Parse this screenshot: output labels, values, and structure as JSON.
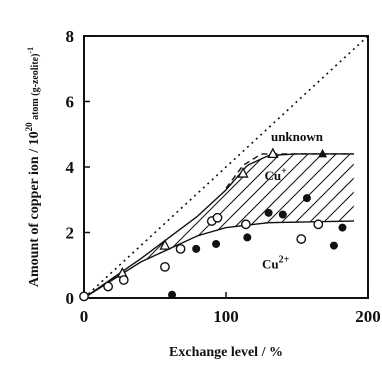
{
  "chart_data": {
    "type": "scatter",
    "title": "",
    "xlabel": "Exchange level / %",
    "ylabel": "Amount of copper ion / 10^20 atom (g-zeolite)^-1",
    "ylabel_main": "Amount of copper ion / 10",
    "ylabel_exp": "20",
    "ylabel_unit": " atom (g-zeolite)",
    "ylabel_unit_exp": "-1",
    "xlim": [
      0,
      200
    ],
    "ylim": [
      0,
      8
    ],
    "xticks": [
      0,
      100,
      200
    ],
    "yticks": [
      0,
      2,
      4,
      6,
      8
    ],
    "grid": false,
    "legend": "none",
    "annotations": [
      {
        "text": "unknown",
        "x": 150,
        "y": 4.8
      },
      {
        "text": "Cu+",
        "x": 135,
        "y": 3.6,
        "sup": "+"
      },
      {
        "text": "Cu2+",
        "x": 135,
        "y": 0.9,
        "sup": "2+"
      }
    ],
    "series": [
      {
        "marker": "open-triangle",
        "values": [
          [
            27,
            0.75
          ],
          [
            57,
            1.6
          ],
          [
            112,
            3.8
          ],
          [
            133,
            4.4
          ]
        ]
      },
      {
        "marker": "filled-triangle",
        "values": [
          [
            168,
            4.4
          ]
        ]
      },
      {
        "marker": "open-circle",
        "values": [
          [
            0,
            0.05
          ],
          [
            17,
            0.35
          ],
          [
            28,
            0.55
          ],
          [
            57,
            0.95
          ],
          [
            68,
            1.5
          ],
          [
            90,
            2.35
          ],
          [
            94,
            2.45
          ],
          [
            114,
            2.25
          ],
          [
            153,
            1.8
          ],
          [
            165,
            2.25
          ]
        ]
      },
      {
        "marker": "filled-circle",
        "values": [
          [
            62,
            0.1
          ],
          [
            79,
            1.5
          ],
          [
            93,
            1.65
          ],
          [
            115,
            1.85
          ],
          [
            130,
            2.6
          ],
          [
            140,
            2.55
          ],
          [
            157,
            3.05
          ],
          [
            176,
            1.6
          ],
          [
            182,
            2.15
          ]
        ]
      }
    ],
    "curves": [
      {
        "role": "total",
        "style": "solid",
        "values": [
          [
            0,
            0
          ],
          [
            40,
            1.2
          ],
          [
            80,
            2.5
          ],
          [
            100,
            3.3
          ],
          [
            115,
            4.05
          ],
          [
            130,
            4.35
          ],
          [
            150,
            4.4
          ],
          [
            190,
            4.4
          ]
        ]
      },
      {
        "role": "total-dashed",
        "style": "dashed",
        "values": [
          [
            100,
            3.35
          ],
          [
            112,
            4.05
          ],
          [
            125,
            4.4
          ],
          [
            190,
            4.4
          ]
        ]
      },
      {
        "role": "cu2plus",
        "style": "solid",
        "values": [
          [
            0,
            0
          ],
          [
            40,
            1.1
          ],
          [
            80,
            1.9
          ],
          [
            100,
            2.15
          ],
          [
            130,
            2.3
          ],
          [
            190,
            2.35
          ]
        ]
      },
      {
        "role": "reference",
        "style": "dotted",
        "values": [
          [
            0,
            0
          ],
          [
            200,
            8
          ]
        ]
      }
    ]
  },
  "colors": {
    "ink": "#111111",
    "background": "#ffffff"
  }
}
